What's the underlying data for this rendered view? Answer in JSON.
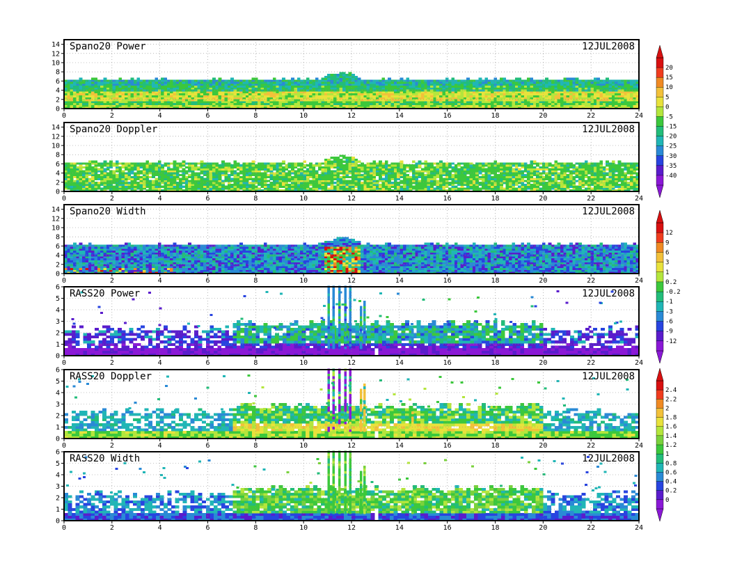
{
  "figure": {
    "date": "12JUL2008",
    "x_ticks": [
      "0",
      "2",
      "4",
      "6",
      "8",
      "10",
      "12",
      "14",
      "16",
      "18",
      "20",
      "22",
      "24"
    ]
  },
  "chart_data": [
    {
      "type": "heatmap",
      "title": "Spano20 Power",
      "date_label": "12JUL2008",
      "xlim": [
        0,
        24
      ],
      "ylim": [
        0,
        15
      ],
      "y_ticks": [
        "0",
        "2",
        "4",
        "6",
        "8",
        "10",
        "12",
        "14"
      ],
      "data_top": 6.2,
      "profile": "spano_power",
      "colorbar": "power_spano"
    },
    {
      "type": "heatmap",
      "title": "Spano20 Doppler",
      "date_label": "12JUL2008",
      "xlim": [
        0,
        24
      ],
      "ylim": [
        0,
        15
      ],
      "y_ticks": [
        "0",
        "2",
        "4",
        "6",
        "8",
        "10",
        "12",
        "14"
      ],
      "data_top": 6.2,
      "profile": "spano_doppler",
      "colorbar": "power_spano"
    },
    {
      "type": "heatmap",
      "title": "Spano20 Width",
      "date_label": "12JUL2008",
      "xlim": [
        0,
        24
      ],
      "ylim": [
        0,
        15
      ],
      "y_ticks": [
        "0",
        "2",
        "4",
        "6",
        "8",
        "10",
        "12",
        "14"
      ],
      "data_top": 6.2,
      "profile": "spano_width",
      "colorbar": "doppler"
    },
    {
      "type": "heatmap",
      "title": "RASS20 Power",
      "date_label": "12JUL2008",
      "xlim": [
        0,
        24
      ],
      "ylim": [
        0,
        6
      ],
      "y_ticks": [
        "0",
        "1",
        "2",
        "3",
        "4",
        "5",
        "6"
      ],
      "data_top": 2.3,
      "profile": "rass_power",
      "colorbar": "doppler"
    },
    {
      "type": "heatmap",
      "title": "RASS20 Doppler",
      "date_label": "12JUL2008",
      "xlim": [
        0,
        24
      ],
      "ylim": [
        0,
        6
      ],
      "y_ticks": [
        "0",
        "1",
        "2",
        "3",
        "4",
        "5",
        "6"
      ],
      "data_top": 2.3,
      "profile": "rass_doppler",
      "colorbar": "width"
    },
    {
      "type": "heatmap",
      "title": "RASS20 Width",
      "date_label": "12JUL2008",
      "xlim": [
        0,
        24
      ],
      "ylim": [
        0,
        6
      ],
      "y_ticks": [
        "0",
        "1",
        "2",
        "3",
        "4",
        "5",
        "6"
      ],
      "data_top": 2.3,
      "profile": "rass_width",
      "colorbar": "width"
    }
  ],
  "colorbars": {
    "power_spano": {
      "labels": [
        "20",
        "15",
        "10",
        "5",
        "0",
        "-5",
        "-15",
        "-20",
        "-25",
        "-30",
        "-35",
        "-40"
      ],
      "colors": [
        "#d81010",
        "#f03c1e",
        "#f08a23",
        "#f2c13a",
        "#e8e23c",
        "#b4e63c",
        "#3cc83c",
        "#22bd7a",
        "#20b6b6",
        "#2a8ad6",
        "#2844e0",
        "#5a1ccc",
        "#8a18d6"
      ]
    },
    "doppler": {
      "labels": [
        "12",
        "9",
        "6",
        "3",
        "1",
        "0.2",
        "-0.2",
        "-1",
        "-3",
        "-6",
        "-9",
        "-12"
      ],
      "colors": [
        "#d81010",
        "#f03c1e",
        "#f08a23",
        "#f2c13a",
        "#e8e23c",
        "#b4e63c",
        "#3cc83c",
        "#22bd7a",
        "#20b6b6",
        "#2a8ad6",
        "#2844e0",
        "#5a1ccc",
        "#8a18d6"
      ]
    },
    "width": {
      "labels": [
        "2.4",
        "2.2",
        "2",
        "1.8",
        "1.6",
        "1.4",
        "1.2",
        "1",
        "0.8",
        "0.6",
        "0.4",
        "0.2",
        "0"
      ],
      "colors": [
        "#d81010",
        "#f03c1e",
        "#f08a23",
        "#f2c13a",
        "#e8e23c",
        "#b4e63c",
        "#7ad23c",
        "#3cc83c",
        "#22bd7a",
        "#20b6b6",
        "#2a8ad6",
        "#2844e0",
        "#5a1ccc",
        "#8a18d6"
      ]
    }
  }
}
